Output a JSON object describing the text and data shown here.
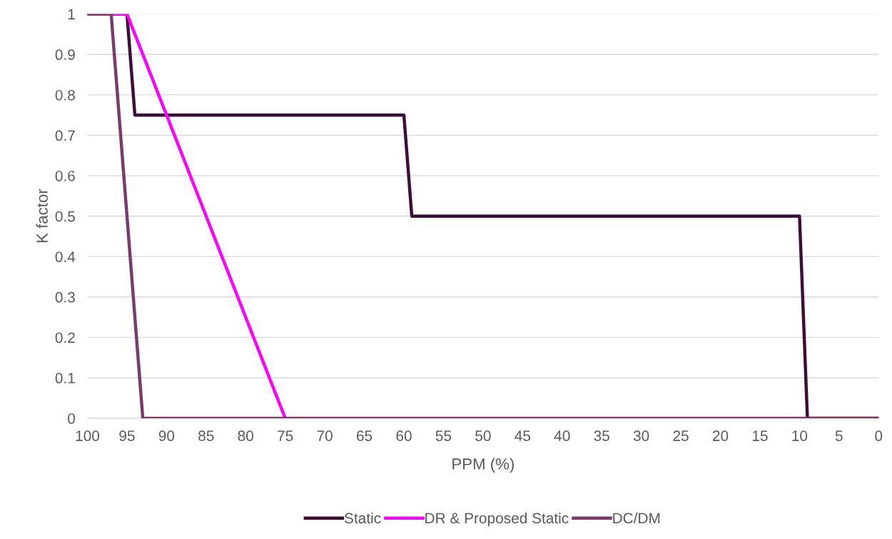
{
  "chart_data": {
    "type": "line",
    "xlabel": "PPM (%)",
    "ylabel": "K factor",
    "xlim": [
      100,
      0
    ],
    "xticks": [
      100,
      95,
      90,
      85,
      80,
      75,
      70,
      65,
      60,
      55,
      50,
      45,
      40,
      35,
      30,
      25,
      20,
      15,
      10,
      5,
      0
    ],
    "ylim": [
      0,
      1
    ],
    "yticks": [
      0,
      {
        "value": 0.1,
        "label": "0.1"
      },
      {
        "value": 0.2,
        "label": "0.2"
      },
      {
        "value": 0.3,
        "label": "0.3"
      },
      {
        "value": 0.4,
        "label": "0.4"
      },
      {
        "value": 0.5,
        "label": "0.5"
      },
      {
        "value": 0.6,
        "label": "0.6"
      },
      {
        "value": 0.7,
        "label": "0.7"
      },
      {
        "value": 0.8,
        "label": "0.8"
      },
      {
        "value": 0.9,
        "label": "0.9"
      },
      1
    ],
    "grid": "y",
    "legend": "bottom",
    "marker": "none",
    "line_style": "solid",
    "series": [
      {
        "name": "Static",
        "color": "#3d0c38",
        "x": [
          100,
          95,
          94,
          60,
          59,
          10,
          9,
          0
        ],
        "values": [
          1,
          1,
          0.75,
          0.75,
          0.5,
          0.5,
          0,
          0
        ]
      },
      {
        "name": "DR & Proposed Static",
        "color": "#ff00ff",
        "x": [
          100,
          95,
          75
        ],
        "values": [
          1,
          1,
          0
        ]
      },
      {
        "name": "DC/DM",
        "color": "#7a3a6c",
        "x": [
          100,
          97,
          93,
          0
        ],
        "values": [
          1,
          1,
          0,
          0
        ]
      }
    ]
  }
}
